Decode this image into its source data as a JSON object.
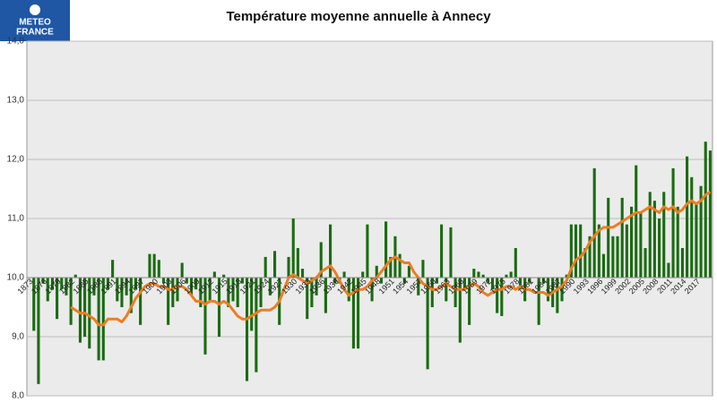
{
  "logo": {
    "line1": "METEO",
    "line2": "FRANCE"
  },
  "chart_data": {
    "type": "bar",
    "title": "Température moyenne annuelle à Annecy",
    "categories": [
      "1873",
      null,
      null,
      "1876",
      null,
      null,
      "1879",
      null,
      null,
      "1882",
      null,
      null,
      "1885",
      null,
      null,
      "1888",
      null,
      null,
      "1891",
      null,
      null,
      "1894",
      null,
      null,
      "1897",
      null,
      null,
      "1900",
      null,
      null,
      "1903",
      null,
      null,
      "1906",
      null,
      null,
      "1909",
      null,
      null,
      "1912",
      null,
      null,
      "1915",
      null,
      null,
      "1918",
      null,
      null,
      "1921",
      null,
      null,
      "1924",
      null,
      null,
      "1927",
      null,
      null,
      "1930",
      null,
      null,
      "1933",
      null,
      null,
      "1936",
      null,
      null,
      "1939",
      null,
      null,
      "1942",
      null,
      null,
      "1945",
      null,
      null,
      "1948",
      null,
      null,
      "1951",
      null,
      null,
      "1954",
      null,
      null,
      "1957",
      null,
      null,
      "1960",
      null,
      null,
      "1963",
      null,
      null,
      "1966",
      null,
      null,
      "1969",
      null,
      null,
      "1972",
      null,
      null,
      "1975",
      null,
      null,
      "1978",
      null,
      null,
      "1981",
      null,
      null,
      "1984",
      null,
      null,
      "1987",
      null,
      null,
      "1990",
      null,
      null,
      "1993",
      null,
      null,
      "1996",
      null,
      null,
      "1999",
      null,
      null,
      "2002",
      null,
      null,
      "2005",
      null,
      null,
      "2008",
      null,
      null,
      "2011",
      null,
      null,
      "2014",
      null,
      null,
      "2017",
      null,
      null,
      null
    ],
    "series": [
      {
        "type": "bar",
        "color": "#1b6b12",
        "values": [
          10.0,
          9.1,
          8.2,
          9.9,
          9.6,
          9.8,
          9.3,
          9.8,
          9.7,
          9.2,
          10.05,
          8.9,
          9.0,
          8.8,
          9.7,
          8.6,
          8.6,
          9.8,
          10.3,
          9.6,
          9.5,
          9.7,
          9.4,
          9.8,
          9.2,
          10.0,
          10.4,
          10.4,
          10.3,
          9.9,
          9.2,
          9.5,
          9.6,
          10.25,
          9.9,
          9.7,
          9.8,
          9.5,
          8.7,
          9.6,
          10.1,
          9.0,
          10.05,
          9.5,
          9.6,
          9.5,
          9.9,
          8.25,
          9.1,
          8.4,
          9.5,
          10.35,
          9.7,
          10.45,
          9.2,
          10.0,
          10.35,
          11.0,
          10.5,
          10.15,
          9.3,
          9.5,
          9.7,
          10.6,
          9.4,
          10.9,
          9.9,
          9.9,
          10.1,
          9.6,
          8.8,
          8.8,
          10.1,
          10.9,
          9.6,
          10.2,
          9.9,
          10.95,
          10.35,
          10.7,
          10.4,
          9.9,
          10.2,
          10.0,
          9.7,
          10.3,
          8.45,
          9.5,
          9.9,
          10.9,
          9.6,
          10.85,
          9.5,
          8.9,
          9.8,
          9.2,
          10.15,
          10.1,
          10.05,
          9.9,
          9.8,
          9.4,
          9.35,
          10.05,
          10.1,
          10.5,
          9.8,
          9.6,
          9.9,
          10.0,
          9.2,
          9.9,
          9.6,
          9.5,
          9.4,
          9.6,
          10.05,
          10.9,
          10.9,
          10.9,
          10.5,
          10.7,
          11.85,
          10.9,
          10.4,
          11.35,
          10.7,
          10.7,
          11.35,
          10.9,
          11.2,
          11.9,
          11.1,
          10.5,
          11.45,
          11.3,
          11.0,
          11.45,
          10.25,
          11.85,
          11.2,
          10.5,
          12.05,
          11.7,
          11.25,
          11.55,
          12.3,
          12.15
        ]
      },
      {
        "type": "line",
        "color": "#ee7d22",
        "values": [
          null,
          null,
          null,
          null,
          null,
          null,
          null,
          null,
          null,
          9.5,
          9.45,
          9.4,
          9.4,
          9.35,
          9.3,
          9.2,
          9.2,
          9.3,
          9.3,
          9.3,
          9.25,
          9.35,
          9.5,
          9.65,
          9.75,
          9.85,
          9.9,
          9.9,
          9.85,
          9.85,
          9.8,
          9.8,
          9.85,
          9.85,
          9.8,
          9.7,
          9.6,
          9.6,
          9.55,
          9.6,
          9.6,
          9.55,
          9.6,
          9.55,
          9.45,
          9.35,
          9.3,
          9.3,
          9.35,
          9.4,
          9.45,
          9.45,
          9.45,
          9.5,
          9.6,
          9.8,
          10.0,
          10.05,
          10.0,
          9.95,
          9.9,
          9.95,
          10.0,
          10.1,
          10.15,
          10.2,
          10.1,
          9.95,
          9.8,
          9.7,
          9.75,
          9.8,
          9.8,
          9.85,
          9.95,
          10.0,
          10.1,
          10.2,
          10.3,
          10.35,
          10.3,
          10.25,
          10.25,
          10.1,
          10.0,
          9.9,
          9.85,
          9.8,
          9.8,
          9.85,
          9.9,
          9.85,
          9.8,
          9.8,
          9.8,
          9.85,
          9.9,
          9.85,
          9.75,
          9.7,
          9.75,
          9.8,
          9.8,
          9.85,
          9.85,
          9.8,
          9.85,
          9.8,
          9.8,
          9.75,
          9.75,
          9.75,
          9.7,
          9.75,
          9.8,
          9.85,
          9.95,
          10.15,
          10.3,
          10.35,
          10.45,
          10.6,
          10.7,
          10.8,
          10.85,
          10.85,
          10.85,
          10.9,
          10.95,
          11.0,
          11.05,
          11.1,
          11.1,
          11.15,
          11.2,
          11.15,
          11.1,
          11.2,
          11.15,
          11.2,
          11.1,
          11.15,
          11.25,
          11.3,
          11.25,
          11.3,
          11.4,
          11.45
        ]
      }
    ],
    "bar_base": 10,
    "ylim": [
      8,
      14
    ],
    "yticks": [
      {
        "value": 8,
        "label": "8,0"
      },
      {
        "value": 9,
        "label": "9,0"
      },
      {
        "value": 10,
        "label": "10,0"
      },
      {
        "value": 11,
        "label": "11,0"
      },
      {
        "value": 12,
        "label": "12,0"
      },
      {
        "value": 13,
        "label": "13,0"
      },
      {
        "value": 14,
        "label": "14,0"
      }
    ],
    "grid": true,
    "background": "#ebebeb"
  }
}
